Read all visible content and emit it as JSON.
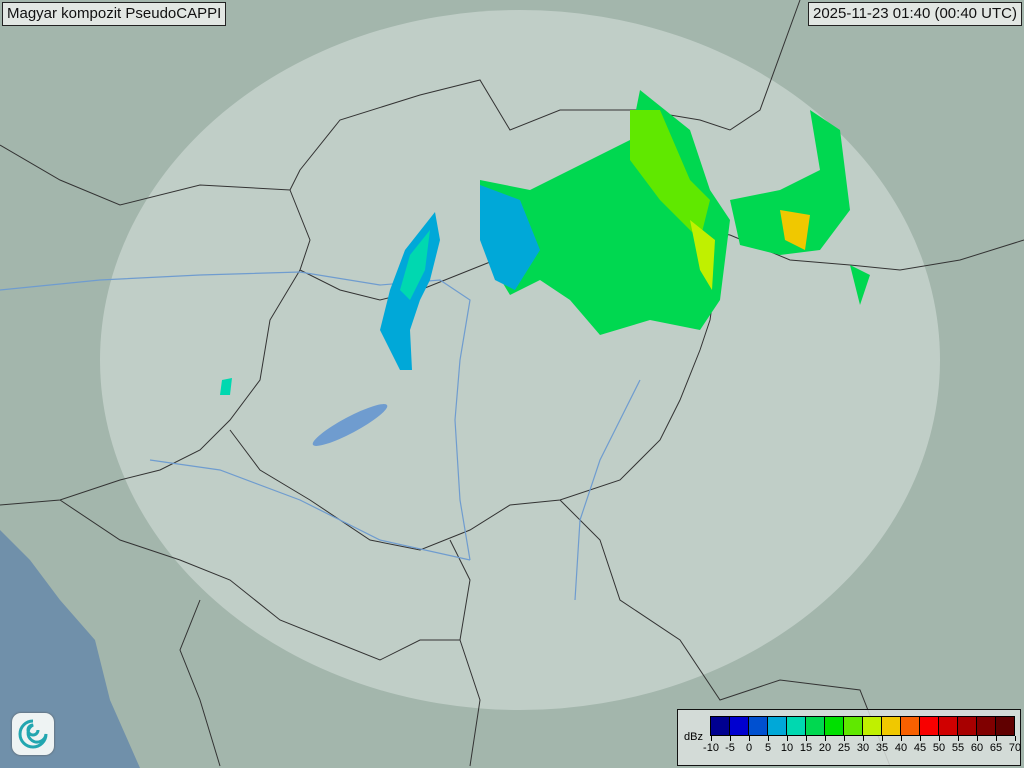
{
  "header": {
    "title": "Magyar kompozit  PseudoCAPPI",
    "timestamp": "2025-11-23 01:40 (00:40 UTC)"
  },
  "legend": {
    "unit": "dBz",
    "colors": [
      "#000090",
      "#0000d0",
      "#0050d0",
      "#00a8d8",
      "#00d8b0",
      "#00d850",
      "#00e000",
      "#60e800",
      "#c0f000",
      "#f0c800",
      "#f86000",
      "#f80000",
      "#d00000",
      "#a80000",
      "#800000",
      "#600000"
    ],
    "ticks": [
      "-10",
      "-5",
      "0",
      "5",
      "10",
      "15",
      "20",
      "25",
      "30",
      "35",
      "40",
      "45",
      "50",
      "55",
      "60",
      "65",
      "70"
    ]
  },
  "logo": {
    "icon": "weather-service-swirl-logo"
  },
  "map": {
    "colors": {
      "land": "#9fb3a9",
      "sea": "#7090aa",
      "radar_coverage": "#dfe8e4",
      "border": "#333333",
      "river": "#6f9ccf",
      "lake": "#6f9ccf"
    }
  }
}
